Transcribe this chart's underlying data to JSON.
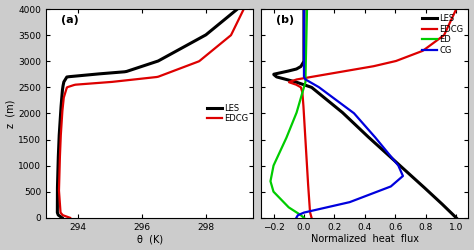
{
  "panel_a": {
    "label": "(a)",
    "xlabel": "θ  (K)",
    "xlim": [
      293.0,
      299.5
    ],
    "xticks": [
      294,
      296,
      298
    ],
    "ylim": [
      0,
      4000
    ],
    "yticks": [
      0,
      500,
      1000,
      1500,
      2000,
      2500,
      3000,
      3500,
      4000
    ],
    "ylabel": "z  (m)",
    "legend": [
      {
        "label": "LES",
        "color": "#000000",
        "lw": 2.2
      },
      {
        "label": "EDCG",
        "color": "#dd0000",
        "lw": 1.6
      }
    ]
  },
  "panel_b": {
    "label": "(b)",
    "xlabel": "Normalized  heat  flux",
    "xlim": [
      -0.28,
      1.08
    ],
    "xticks": [
      -0.2,
      0.0,
      0.2,
      0.4,
      0.6,
      0.8,
      1.0
    ],
    "ylim": [
      0,
      4000
    ],
    "yticks": [
      0,
      500,
      1000,
      1500,
      2000,
      2500,
      3000,
      3500,
      4000
    ],
    "legend": [
      {
        "label": "LES",
        "color": "#000000",
        "lw": 2.2
      },
      {
        "label": "EDCG",
        "color": "#dd0000",
        "lw": 1.6
      },
      {
        "label": "ED",
        "color": "#00cc00",
        "lw": 1.6
      },
      {
        "label": "CG",
        "color": "#0000dd",
        "lw": 1.6
      }
    ]
  },
  "background": "#ffffff",
  "fig_facecolor": "#cccccc",
  "caption_facecolor": "#cccccc"
}
